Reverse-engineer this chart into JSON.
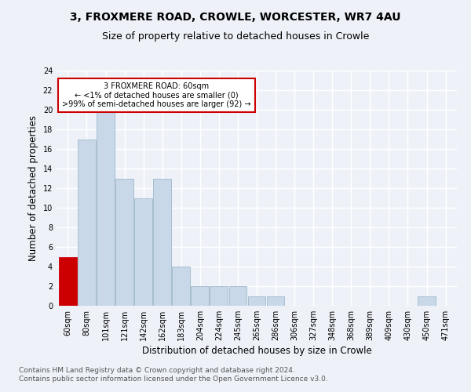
{
  "title1": "3, FROXMERE ROAD, CROWLE, WORCESTER, WR7 4AU",
  "title2": "Size of property relative to detached houses in Crowle",
  "xlabel": "Distribution of detached houses by size in Crowle",
  "ylabel": "Number of detached properties",
  "categories": [
    "60sqm",
    "80sqm",
    "101sqm",
    "121sqm",
    "142sqm",
    "162sqm",
    "183sqm",
    "204sqm",
    "224sqm",
    "245sqm",
    "265sqm",
    "286sqm",
    "306sqm",
    "327sqm",
    "348sqm",
    "368sqm",
    "389sqm",
    "409sqm",
    "430sqm",
    "450sqm",
    "471sqm"
  ],
  "values": [
    5,
    17,
    20,
    13,
    11,
    13,
    4,
    2,
    2,
    2,
    1,
    1,
    0,
    0,
    0,
    0,
    0,
    0,
    0,
    1,
    0
  ],
  "bar_color": "#c8d8e8",
  "bar_edge_color": "#a0b8cc",
  "highlight_index": 0,
  "highlight_color": "#cc0000",
  "annotation_text": "3 FROXMERE ROAD: 60sqm\n← <1% of detached houses are smaller (0)\n>99% of semi-detached houses are larger (92) →",
  "annotation_box_color": "white",
  "annotation_box_edge": "#cc0000",
  "ylim": [
    0,
    24
  ],
  "yticks": [
    0,
    2,
    4,
    6,
    8,
    10,
    12,
    14,
    16,
    18,
    20,
    22,
    24
  ],
  "footer": "Contains HM Land Registry data © Crown copyright and database right 2024.\nContains public sector information licensed under the Open Government Licence v3.0.",
  "background_color": "#eef2f8",
  "grid_color": "#ffffff",
  "title1_fontsize": 10,
  "title2_fontsize": 9,
  "xlabel_fontsize": 8.5,
  "ylabel_fontsize": 8.5,
  "tick_fontsize": 7,
  "footer_fontsize": 6.5
}
